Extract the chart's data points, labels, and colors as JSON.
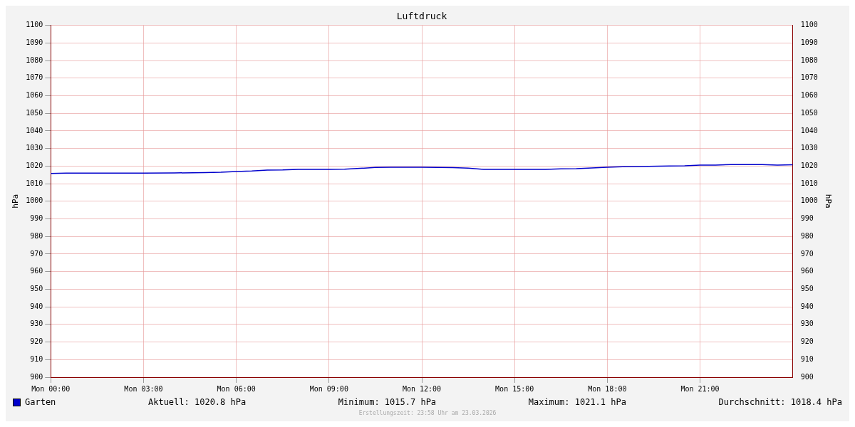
{
  "chart_data": {
    "type": "line",
    "title": "Luftdruck",
    "ylabel": "hPa",
    "y2label": "hPa",
    "x": [
      "2026-03-23T00:00",
      "2026-03-23T00:30",
      "2026-03-23T01:00",
      "2026-03-23T02:00",
      "2026-03-23T03:00",
      "2026-03-23T04:00",
      "2026-03-23T05:00",
      "2026-03-23T05:30",
      "2026-03-23T06:00",
      "2026-03-23T06:30",
      "2026-03-23T07:00",
      "2026-03-23T07:30",
      "2026-03-23T08:00",
      "2026-03-23T09:00",
      "2026-03-23T09:30",
      "2026-03-23T10:00",
      "2026-03-23T10:30",
      "2026-03-23T11:00",
      "2026-03-23T12:00",
      "2026-03-23T13:00",
      "2026-03-23T13:30",
      "2026-03-23T14:00",
      "2026-03-23T15:00",
      "2026-03-23T16:00",
      "2026-03-23T16:30",
      "2026-03-23T17:00",
      "2026-03-23T17:30",
      "2026-03-23T18:00",
      "2026-03-23T18:30",
      "2026-03-23T19:00",
      "2026-03-23T20:00",
      "2026-03-23T20:30",
      "2026-03-23T21:00",
      "2026-03-23T21:30",
      "2026-03-23T22:00",
      "2026-03-23T23:00",
      "2026-03-23T23:30",
      "2026-03-24T00:00"
    ],
    "series": [
      {
        "name": "Garten",
        "color": "#0000cc",
        "values": [
          1015.8,
          1016,
          1016,
          1016,
          1016,
          1016.1,
          1016.3,
          1016.5,
          1016.9,
          1017.2,
          1017.7,
          1017.8,
          1018.1,
          1018.1,
          1018.2,
          1018.7,
          1019.2,
          1019.3,
          1019.3,
          1019.1,
          1018.8,
          1018.1,
          1018.1,
          1018.1,
          1018.4,
          1018.5,
          1018.9,
          1019.3,
          1019.6,
          1019.7,
          1020,
          1020.1,
          1020.5,
          1020.6,
          1020.9,
          1020.9,
          1020.5,
          1020.8
        ]
      }
    ],
    "xlim": [
      "2026-03-23T00:00",
      "2026-03-24T00:00"
    ],
    "xticks": [
      {
        "value": "2026-03-23T00:00",
        "label": "Mon 00:00"
      },
      {
        "value": "2026-03-23T03:00",
        "label": "Mon 03:00"
      },
      {
        "value": "2026-03-23T06:00",
        "label": "Mon 06:00"
      },
      {
        "value": "2026-03-23T09:00",
        "label": "Mon 09:00"
      },
      {
        "value": "2026-03-23T12:00",
        "label": "Mon 12:00"
      },
      {
        "value": "2026-03-23T15:00",
        "label": "Mon 15:00"
      },
      {
        "value": "2026-03-23T18:00",
        "label": "Mon 18:00"
      },
      {
        "value": "2026-03-23T21:00",
        "label": "Mon 21:00"
      }
    ],
    "ylim": [
      900,
      1100
    ],
    "yticks": [
      900,
      910,
      920,
      930,
      940,
      950,
      960,
      970,
      980,
      990,
      1000,
      1010,
      1020,
      1030,
      1040,
      1050,
      1060,
      1070,
      1080,
      1090,
      1100
    ],
    "y2lim": [
      900,
      1100
    ],
    "y2ticks": [
      900,
      910,
      920,
      930,
      940,
      950,
      960,
      970,
      980,
      990,
      1000,
      1010,
      1020,
      1030,
      1040,
      1050,
      1060,
      1070,
      1080,
      1090,
      1100
    ],
    "grid": true,
    "legend": "bottom left",
    "marker": "none",
    "line_style": "solid",
    "annotations": [
      "Aktuell: 1020.8 hPa",
      "Minimum: 1015.7 hPa",
      "Maximum: 1021.1 hPa",
      "Durchschnitt: 1018.4 hPa",
      "Erstellungszeit: 23:58 Uhr am 23.03.2026"
    ]
  }
}
